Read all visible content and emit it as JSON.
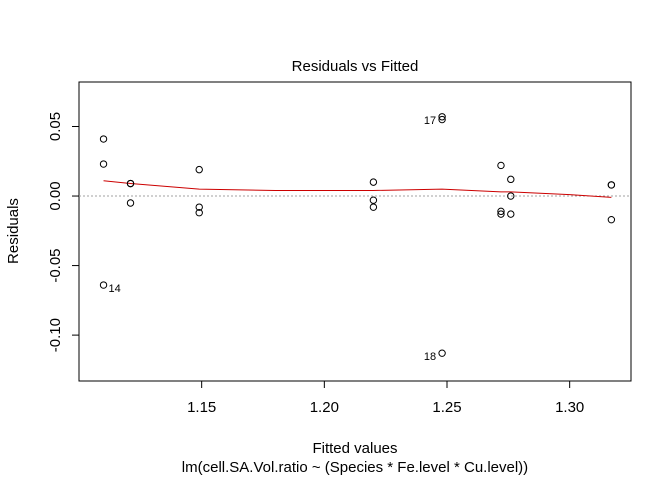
{
  "chart_data": {
    "type": "scatter",
    "title": "Residuals vs Fitted",
    "xlabel": "Fitted values",
    "ylabel": "Residuals",
    "subtitle": "lm(cell.SA.Vol.ratio ~ (Species * Fe.level * Cu.level))",
    "xlim": [
      1.1,
      1.325
    ],
    "ylim": [
      -0.133,
      0.082
    ],
    "x_ticks": [
      1.15,
      1.2,
      1.25,
      1.3
    ],
    "x_tick_labels": [
      "1.15",
      "1.20",
      "1.25",
      "1.30"
    ],
    "y_ticks": [
      -0.1,
      -0.05,
      0.0,
      0.05
    ],
    "y_tick_labels": [
      "-0.10",
      "-0.05",
      "0.00",
      "0.05"
    ],
    "points": [
      {
        "x": 1.11,
        "y": 0.041
      },
      {
        "x": 1.11,
        "y": 0.023
      },
      {
        "x": 1.11,
        "y": -0.064,
        "label": "14"
      },
      {
        "x": 1.121,
        "y": 0.009
      },
      {
        "x": 1.121,
        "y": 0.009
      },
      {
        "x": 1.121,
        "y": -0.005
      },
      {
        "x": 1.149,
        "y": 0.019
      },
      {
        "x": 1.149,
        "y": -0.008
      },
      {
        "x": 1.149,
        "y": -0.012
      },
      {
        "x": 1.22,
        "y": 0.01
      },
      {
        "x": 1.22,
        "y": -0.003
      },
      {
        "x": 1.22,
        "y": -0.008
      },
      {
        "x": 1.248,
        "y": 0.057,
        "label": "17"
      },
      {
        "x": 1.248,
        "y": 0.055
      },
      {
        "x": 1.248,
        "y": -0.113,
        "label": "18"
      },
      {
        "x": 1.272,
        "y": 0.022
      },
      {
        "x": 1.272,
        "y": -0.011
      },
      {
        "x": 1.272,
        "y": -0.013
      },
      {
        "x": 1.276,
        "y": 0.012
      },
      {
        "x": 1.276,
        "y": 0.0
      },
      {
        "x": 1.276,
        "y": -0.013
      },
      {
        "x": 1.317,
        "y": 0.008
      },
      {
        "x": 1.317,
        "y": 0.008
      },
      {
        "x": 1.317,
        "y": -0.017
      }
    ],
    "smoother": {
      "color": "#cc0000",
      "x": [
        1.11,
        1.121,
        1.149,
        1.18,
        1.22,
        1.248,
        1.272,
        1.276,
        1.3,
        1.317
      ],
      "y": [
        0.011,
        0.009,
        0.005,
        0.004,
        0.004,
        0.005,
        0.003,
        0.003,
        0.001,
        -0.001
      ]
    },
    "reference_line": {
      "y": 0,
      "style": "dotted",
      "color": "#a0a0a0"
    },
    "grid": false
  }
}
